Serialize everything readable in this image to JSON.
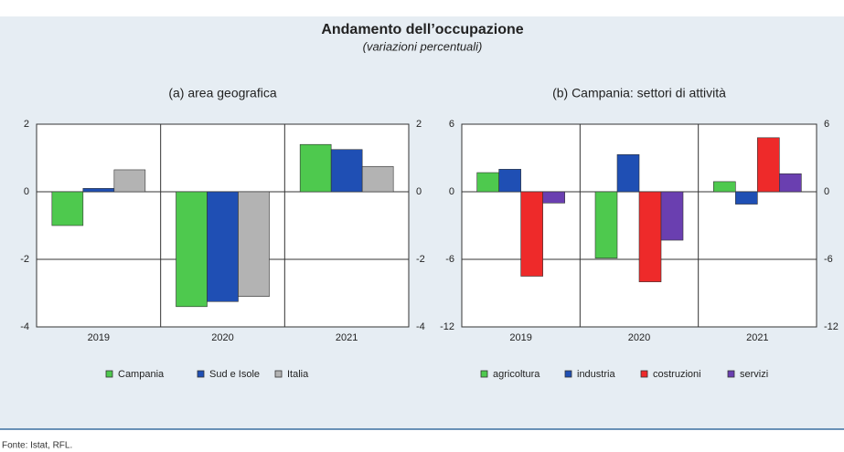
{
  "title": "Andamento dell’occupazione",
  "subtitle": "(variazioni percentuali)",
  "source": "Fonte: Istat, RFL.",
  "chart_data": [
    {
      "type": "bar",
      "title": "(a) area geografica",
      "categories": [
        "2019",
        "2020",
        "2021"
      ],
      "series": [
        {
          "name": "Campania",
          "color": "#4ec94e",
          "values": [
            -1.0,
            -3.4,
            1.4
          ]
        },
        {
          "name": "Sud e Isole",
          "color": "#1f4fb4",
          "values": [
            0.1,
            -3.25,
            1.25
          ]
        },
        {
          "name": "Italia",
          "color": "#b3b3b3",
          "values": [
            0.65,
            -3.1,
            0.75
          ]
        }
      ],
      "ylim": [
        -4,
        2
      ],
      "yticks": [
        -4,
        -2,
        0,
        2
      ],
      "grid": true
    },
    {
      "type": "bar",
      "title": "(b) Campania: settori di attività",
      "categories": [
        "2019",
        "2020",
        "2021"
      ],
      "series": [
        {
          "name": "agricoltura",
          "color": "#4ec94e",
          "values": [
            1.7,
            -5.9,
            0.9
          ]
        },
        {
          "name": "industria",
          "color": "#1f4fb4",
          "values": [
            2.0,
            3.3,
            -1.1
          ]
        },
        {
          "name": "costruzioni",
          "color": "#ee2a2a",
          "values": [
            -7.5,
            -8.0,
            4.8
          ]
        },
        {
          "name": "servizi",
          "color": "#6a3fb0",
          "values": [
            -1.0,
            -4.3,
            1.6
          ]
        }
      ],
      "ylim": [
        -12,
        6
      ],
      "yticks": [
        -12,
        -6,
        0,
        6
      ],
      "grid": true
    }
  ]
}
